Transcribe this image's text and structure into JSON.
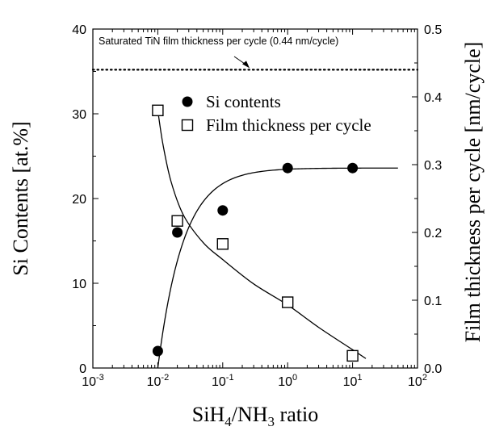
{
  "chart_data": {
    "type": "scatter",
    "title": "",
    "xlabel_parts": {
      "a": "SiH",
      "a_sub": "4",
      "b": "/NH",
      "b_sub": "3",
      "c": " ratio"
    },
    "ylabel_left": "Si Contents [at.%]",
    "ylabel_right": "Film thickness per cycle [nm/cycle]",
    "x_scale": "log",
    "xlim": [
      0.001,
      100
    ],
    "ylim_left": [
      0,
      40
    ],
    "ylim_right": [
      0,
      0.5
    ],
    "x_ticks": [
      {
        "base": "10",
        "exp": "-3"
      },
      {
        "base": "10",
        "exp": "-2"
      },
      {
        "base": "10",
        "exp": "-1"
      },
      {
        "base": "10",
        "exp": "0"
      },
      {
        "base": "10",
        "exp": "1"
      },
      {
        "base": "10",
        "exp": "2"
      }
    ],
    "y_left_ticks": [
      "0",
      "10",
      "20",
      "30",
      "40"
    ],
    "y_right_ticks": [
      "0.0",
      "0.1",
      "0.2",
      "0.3",
      "0.4",
      "0.5"
    ],
    "grid": false,
    "legend_position": "top-center",
    "series": [
      {
        "name": "Si contents",
        "axis": "left",
        "marker": "filled-circle",
        "x": [
          0.01,
          0.02,
          0.1,
          1,
          10
        ],
        "y": [
          2,
          16,
          18.6,
          23.6,
          23.6
        ]
      },
      {
        "name": "Film thickness per cycle",
        "axis": "right",
        "marker": "open-square",
        "x": [
          0.01,
          0.02,
          0.1,
          1,
          10
        ],
        "y": [
          0.38,
          0.217,
          0.183,
          0.097,
          0.018
        ]
      }
    ],
    "reference_line": {
      "axis": "right",
      "y": 0.44,
      "style": "dotted",
      "annotation": "Saturated TiN film thickness per cycle (0.44 nm/cycle)"
    }
  }
}
